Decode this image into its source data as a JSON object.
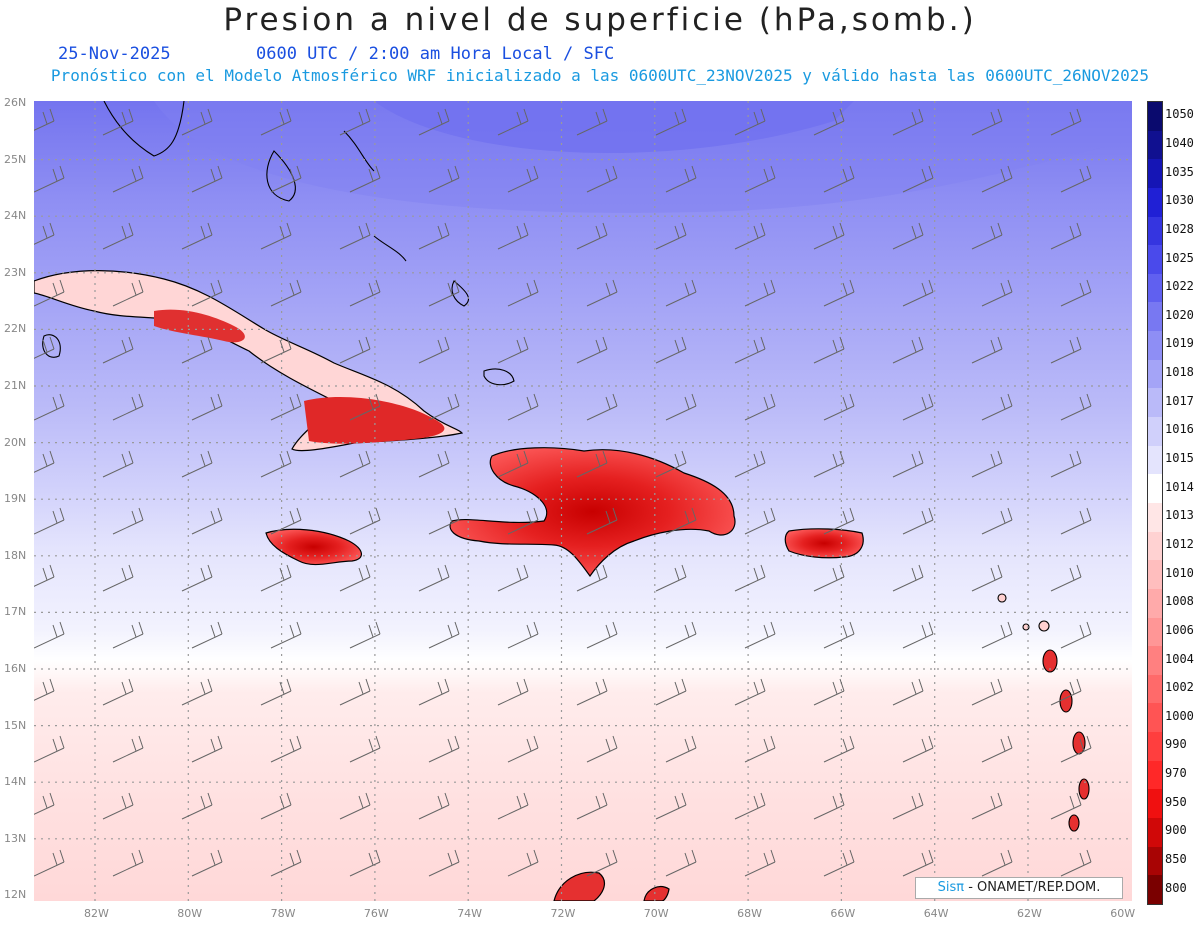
{
  "title": "Presion a nivel de superficie (hPa,somb.)",
  "date": "25-Nov-2025",
  "time_info": "0600 UTC / 2:00 am Hora Local / SFC",
  "forecast_info": "Pronóstico con el Modelo Atmosférico WRF inicializado a las 0600UTC_23NOV2025 y válido hasta las  0600UTC_26NOV2025",
  "lat_labels": [
    "26N",
    "25N",
    "24N",
    "23N",
    "22N",
    "21N",
    "20N",
    "19N",
    "18N",
    "17N",
    "16N",
    "15N",
    "14N",
    "13N",
    "12N"
  ],
  "lon_labels": [
    "82W",
    "80W",
    "78W",
    "76W",
    "74W",
    "72W",
    "70W",
    "68W",
    "66W",
    "64W",
    "62W",
    "60W"
  ],
  "colorbar": {
    "levels": [
      "1050",
      "1040",
      "1035",
      "1030",
      "1028",
      "1025",
      "1022",
      "1020",
      "1019",
      "1018",
      "1017",
      "1016",
      "1015",
      "1014",
      "1013",
      "1012",
      "1010",
      "1008",
      "1006",
      "1004",
      "1002",
      "1000",
      "990",
      "970",
      "950",
      "900",
      "850",
      "800"
    ],
    "colors": [
      "#0a0a6e",
      "#101090",
      "#1515b5",
      "#2020d5",
      "#3535e0",
      "#4a4aeb",
      "#6060f0",
      "#7878f2",
      "#8e8ef5",
      "#a4a4f7",
      "#babaf9",
      "#d0d0fb",
      "#e4e4fd",
      "#ffffff",
      "#ffe6e6",
      "#ffd2d2",
      "#ffbebe",
      "#ffaaaa",
      "#ff9696",
      "#ff8080",
      "#ff6a6a",
      "#ff5454",
      "#ff3e3e",
      "#ff2828",
      "#f01010",
      "#d00808",
      "#a80404",
      "#7a0000"
    ]
  },
  "credit": {
    "brand": "Sisπ",
    "org": " - ONAMET/REP.DOM."
  }
}
